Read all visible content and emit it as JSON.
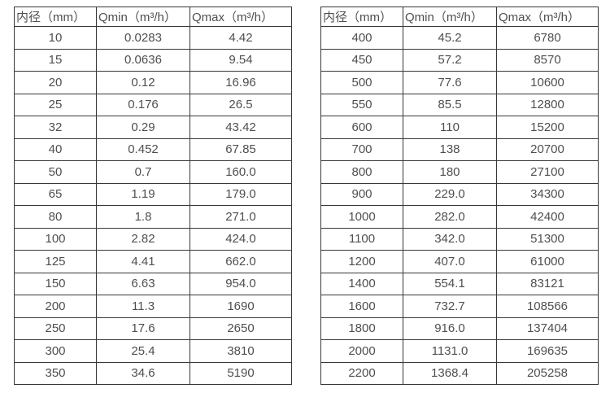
{
  "colors": {
    "border": "#383838",
    "text": "#4f4f4f",
    "background": "#ffffff"
  },
  "tables": [
    {
      "name": "flow-spec-table-small-diameters",
      "headers": [
        "内径（mm）",
        "Qmin（m³/h）",
        "Qmax（m³/h）"
      ],
      "rows": [
        [
          "10",
          "0.0283",
          "4.42"
        ],
        [
          "15",
          "0.0636",
          "9.54"
        ],
        [
          "20",
          "0.12",
          "16.96"
        ],
        [
          "25",
          "0.176",
          "26.5"
        ],
        [
          "32",
          "0.29",
          "43.42"
        ],
        [
          "40",
          "0.452",
          "67.85"
        ],
        [
          "50",
          "0.7",
          "160.0"
        ],
        [
          "65",
          "1.19",
          "179.0"
        ],
        [
          "80",
          "1.8",
          "271.0"
        ],
        [
          "100",
          "2.82",
          "424.0"
        ],
        [
          "125",
          "4.41",
          "662.0"
        ],
        [
          "150",
          "6.63",
          "954.0"
        ],
        [
          "200",
          "11.3",
          "1690"
        ],
        [
          "250",
          "17.6",
          "2650"
        ],
        [
          "300",
          "25.4",
          "3810"
        ],
        [
          "350",
          "34.6",
          "5190"
        ]
      ]
    },
    {
      "name": "flow-spec-table-large-diameters",
      "headers": [
        "内径（mm）",
        "Qmin（m³/h）",
        "Qmax（m³/h）"
      ],
      "rows": [
        [
          "400",
          "45.2",
          "6780"
        ],
        [
          "450",
          "57.2",
          "8570"
        ],
        [
          "500",
          "77.6",
          "10600"
        ],
        [
          "550",
          "85.5",
          "12800"
        ],
        [
          "600",
          "110",
          "15200"
        ],
        [
          "700",
          "138",
          "20700"
        ],
        [
          "800",
          "180",
          "27100"
        ],
        [
          "900",
          "229.0",
          "34300"
        ],
        [
          "1000",
          "282.0",
          "42400"
        ],
        [
          "1100",
          "342.0",
          "51300"
        ],
        [
          "1200",
          "407.0",
          "61000"
        ],
        [
          "1400",
          "554.1",
          "83121"
        ],
        [
          "1600",
          "732.7",
          "108566"
        ],
        [
          "1800",
          "916.0",
          "137404"
        ],
        [
          "2000",
          "1131.0",
          "169635"
        ],
        [
          "2200",
          "1368.4",
          "205258"
        ]
      ]
    }
  ]
}
